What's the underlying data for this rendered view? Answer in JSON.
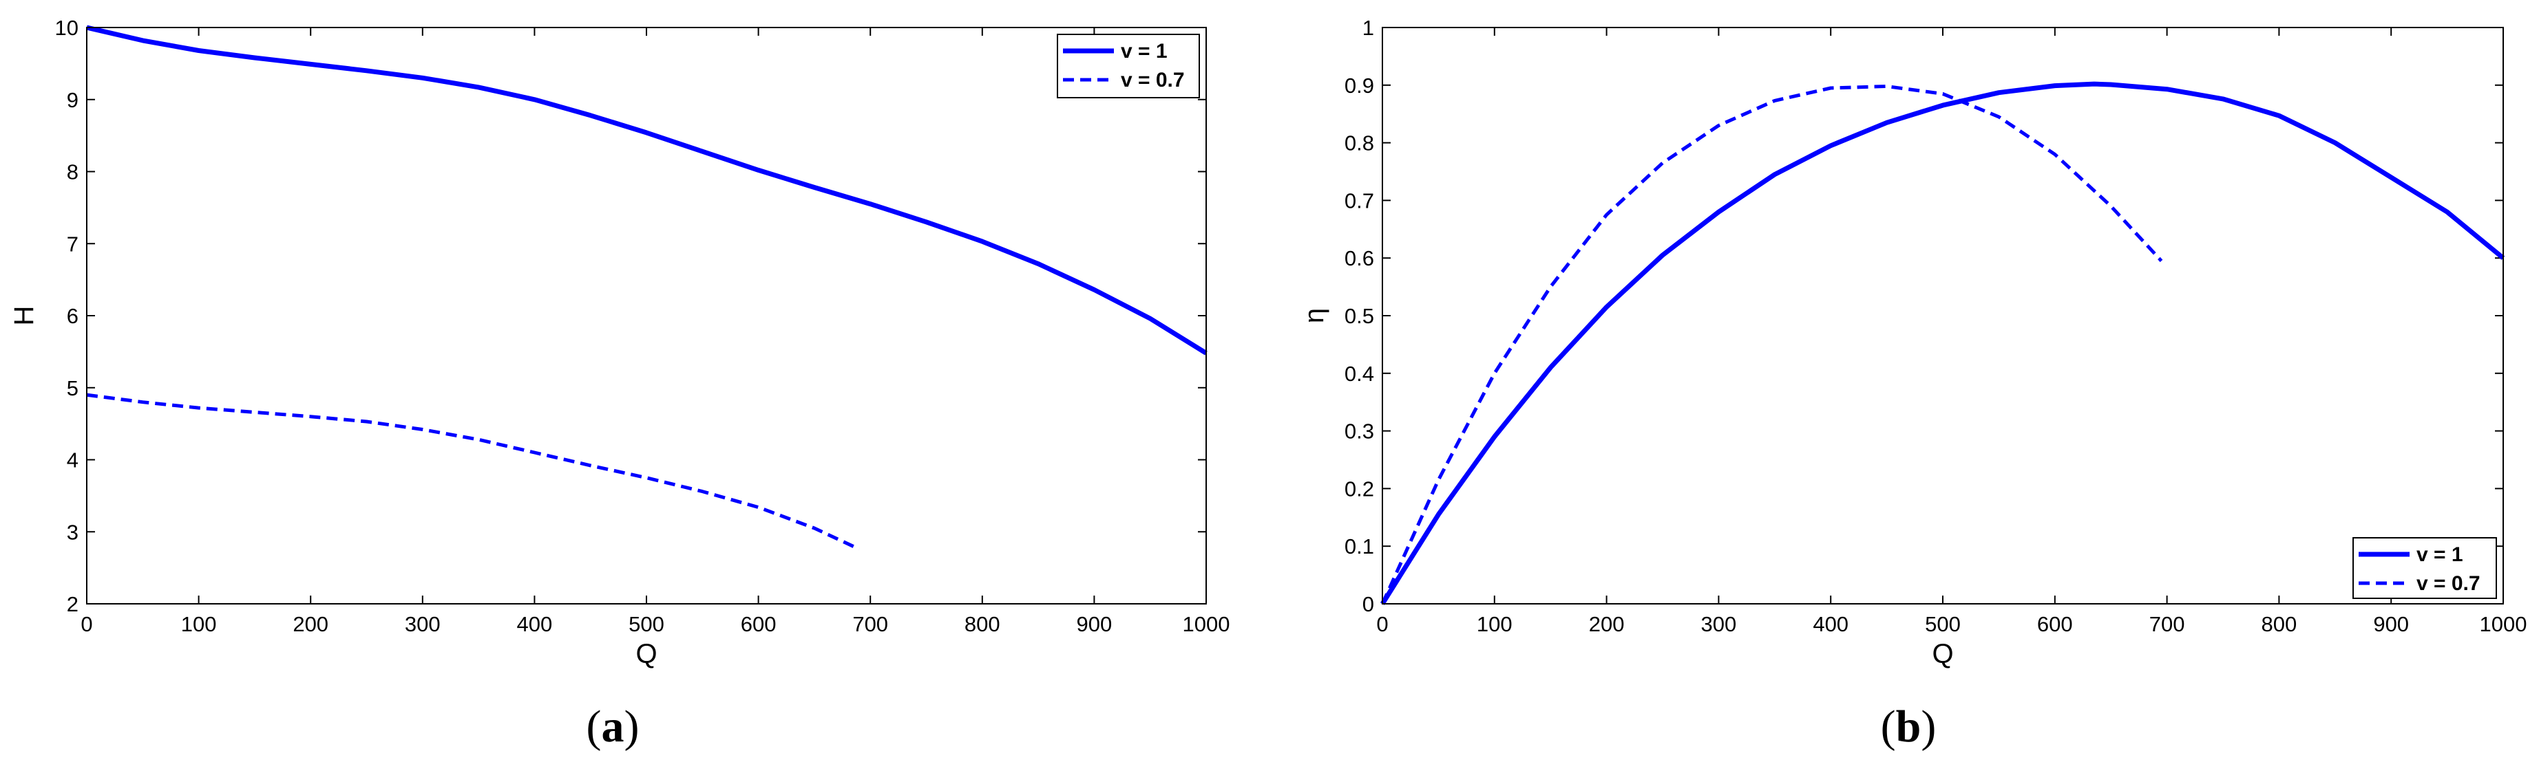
{
  "chart_data": [
    {
      "type": "line",
      "caption": "(a)",
      "caption_letter": "a",
      "xlabel": "Q",
      "ylabel": "H",
      "xlim": [
        0,
        1000
      ],
      "ylim": [
        2,
        10
      ],
      "xticks": [
        0,
        100,
        200,
        300,
        400,
        500,
        600,
        700,
        800,
        900,
        1000
      ],
      "yticks": [
        2,
        3,
        4,
        5,
        6,
        7,
        8,
        9,
        10
      ],
      "legend_position": "top-right",
      "series": [
        {
          "name": "v = 1",
          "style": "solid",
          "color": "#0000ff",
          "x": [
            0,
            50,
            100,
            150,
            200,
            250,
            300,
            350,
            400,
            450,
            500,
            550,
            600,
            650,
            700,
            750,
            800,
            850,
            900,
            950,
            1000
          ],
          "y": [
            10.0,
            9.82,
            9.68,
            9.58,
            9.49,
            9.4,
            9.3,
            9.17,
            9.0,
            8.78,
            8.54,
            8.28,
            8.02,
            7.78,
            7.55,
            7.3,
            7.03,
            6.72,
            6.36,
            5.96,
            5.48
          ]
        },
        {
          "name": "v = 0.7",
          "style": "dashed",
          "color": "#0000ff",
          "x": [
            0,
            50,
            100,
            150,
            200,
            250,
            300,
            350,
            400,
            450,
            500,
            550,
            600,
            650,
            690
          ],
          "y": [
            4.9,
            4.8,
            4.72,
            4.66,
            4.6,
            4.53,
            4.42,
            4.28,
            4.1,
            3.92,
            3.75,
            3.56,
            3.34,
            3.05,
            2.76
          ]
        }
      ]
    },
    {
      "type": "line",
      "caption": "(b)",
      "caption_letter": "b",
      "xlabel": "Q",
      "ylabel": "η",
      "xlim": [
        0,
        1000
      ],
      "ylim": [
        0,
        1
      ],
      "xticks": [
        0,
        100,
        200,
        300,
        400,
        500,
        600,
        700,
        800,
        900,
        1000
      ],
      "yticks": [
        0,
        0.1,
        0.2,
        0.3,
        0.4,
        0.5,
        0.6,
        0.7,
        0.8,
        0.9,
        1
      ],
      "legend_position": "bottom-right",
      "series": [
        {
          "name": "v = 1",
          "style": "solid",
          "color": "#0000ff",
          "x": [
            0,
            50,
            100,
            150,
            200,
            250,
            300,
            350,
            400,
            450,
            500,
            550,
            600,
            635,
            650,
            700,
            750,
            800,
            850,
            900,
            950,
            1000
          ],
          "y": [
            0.0,
            0.155,
            0.29,
            0.41,
            0.515,
            0.605,
            0.68,
            0.745,
            0.795,
            0.835,
            0.865,
            0.887,
            0.899,
            0.902,
            0.901,
            0.893,
            0.876,
            0.847,
            0.8,
            0.74,
            0.68,
            0.6
          ]
        },
        {
          "name": "v = 0.7",
          "style": "dashed",
          "color": "#0000ff",
          "x": [
            0,
            50,
            100,
            150,
            200,
            250,
            300,
            350,
            400,
            450,
            500,
            550,
            600,
            650,
            695
          ],
          "y": [
            0.0,
            0.215,
            0.4,
            0.55,
            0.675,
            0.765,
            0.83,
            0.873,
            0.895,
            0.898,
            0.885,
            0.845,
            0.78,
            0.69,
            0.595
          ]
        }
      ]
    }
  ]
}
